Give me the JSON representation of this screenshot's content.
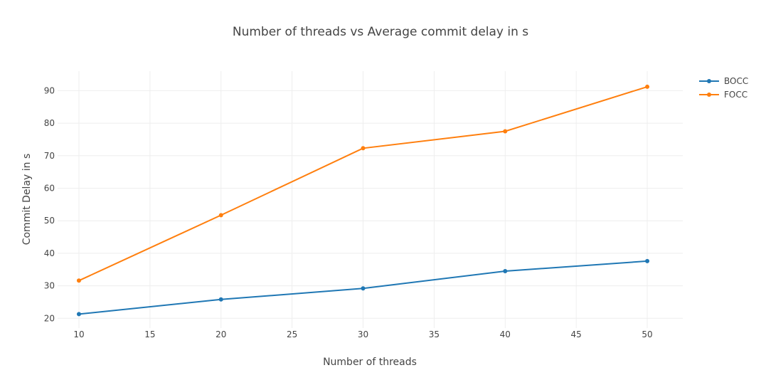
{
  "chart_data": {
    "type": "line",
    "title": "Number of threads vs Average commit delay in s",
    "xlabel": "Number of threads",
    "ylabel": "Commit Delay in s",
    "x": [
      10,
      20,
      30,
      40,
      50
    ],
    "xlim": [
      8.5,
      52.5
    ],
    "ylim": [
      17,
      96
    ],
    "xticks": [
      10,
      15,
      20,
      25,
      30,
      35,
      40,
      45,
      50
    ],
    "yticks": [
      20,
      30,
      40,
      50,
      60,
      70,
      80,
      90
    ],
    "grid": true,
    "legend_position": "top-right",
    "series": [
      {
        "name": "BOCC",
        "color": "#1f77b4",
        "values": [
          21.3,
          25.8,
          29.2,
          34.5,
          37.6
        ]
      },
      {
        "name": "FOCC",
        "color": "#ff7f0e",
        "values": [
          31.6,
          51.7,
          72.3,
          77.5,
          91.2
        ]
      }
    ]
  }
}
